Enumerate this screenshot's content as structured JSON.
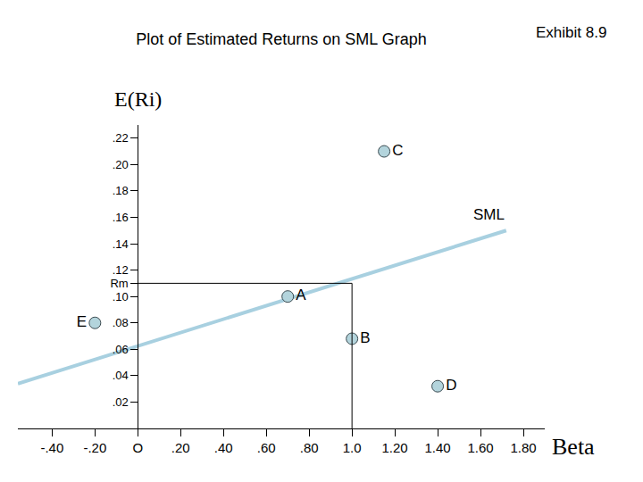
{
  "chart_data": {
    "type": "scatter",
    "title": "Plot of Estimated Returns on SML Graph",
    "annotation": "Exhibit 8.9",
    "x_label": "Beta",
    "y_label": "E(Ri)",
    "xlim": [
      -0.56,
      1.9
    ],
    "xticks": [
      {
        "value": -0.4,
        "label": "-.40"
      },
      {
        "value": -0.2,
        "label": "-.20"
      },
      {
        "value": 0,
        "label": "O"
      },
      {
        "value": 0.2,
        "label": ".20"
      },
      {
        "value": 0.4,
        "label": ".40"
      },
      {
        "value": 0.6,
        "label": ".60"
      },
      {
        "value": 0.8,
        "label": ".80"
      },
      {
        "value": 1.0,
        "label": "1.0"
      },
      {
        "value": 1.2,
        "label": "1.20"
      },
      {
        "value": 1.4,
        "label": "1.40"
      },
      {
        "value": 1.6,
        "label": "1.60"
      },
      {
        "value": 1.8,
        "label": "1.80"
      }
    ],
    "ylim": [
      0,
      0.23
    ],
    "yticks": [
      {
        "value": 0.02,
        "label": ".02"
      },
      {
        "value": 0.04,
        "label": ".04"
      },
      {
        "value": 0.06,
        "label": ".06"
      },
      {
        "value": 0.08,
        "label": ".08"
      },
      {
        "value": 0.1,
        "label": ".10"
      },
      {
        "value": 0.11,
        "label": "Rm"
      },
      {
        "value": 0.12,
        "label": ".12"
      },
      {
        "value": 0.14,
        "label": ".14"
      },
      {
        "value": 0.16,
        "label": ".16"
      },
      {
        "value": 0.18,
        "label": ".18"
      },
      {
        "value": 0.2,
        "label": ".20"
      },
      {
        "value": 0.22,
        "label": ".22"
      }
    ],
    "grid": false,
    "market": {
      "beta": 1.0,
      "return": 0.11
    },
    "series": [
      {
        "name": "SML",
        "type": "line",
        "color": "#a8d0e0",
        "line_style": "solid",
        "x": [
          -0.56,
          1.72
        ],
        "values": [
          0.034,
          0.15
        ]
      },
      {
        "type": "scatter",
        "color": "#b3d4dc",
        "marker": "circle",
        "x": [
          0.7,
          1.0,
          1.15,
          1.4,
          -0.2
        ],
        "values": [
          0.1,
          0.068,
          0.21,
          0.032,
          0.08
        ],
        "labels": [
          "A",
          "B",
          "C",
          "D",
          "E"
        ]
      }
    ]
  }
}
